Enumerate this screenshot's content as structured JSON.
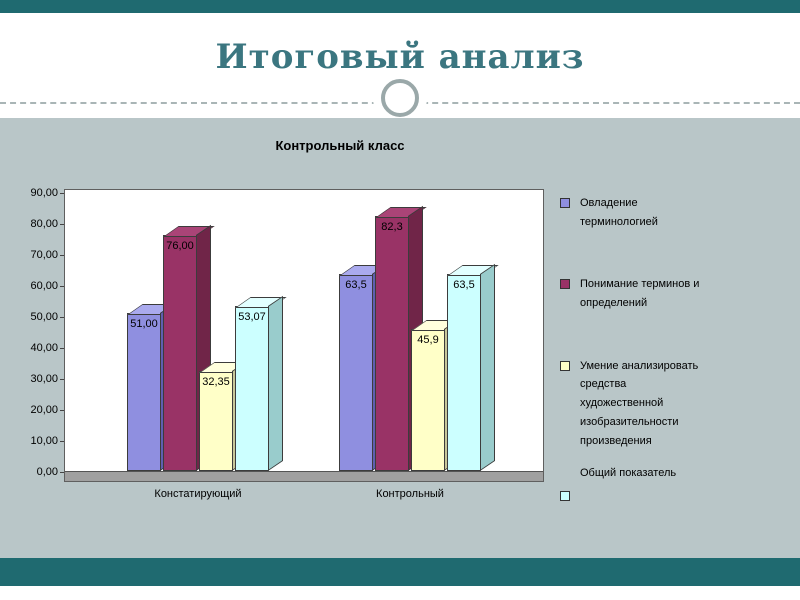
{
  "slide": {
    "title": "Итоговый анализ",
    "colors": {
      "accent_band": "#1f6a70",
      "body_background": "#b9c6c8",
      "title_text": "#3b7680"
    }
  },
  "chart_data": {
    "type": "bar",
    "variant": "3d-clustered",
    "title": "Контрольный класс",
    "categories": [
      "Констатирующий",
      "Контрольный"
    ],
    "series": [
      {
        "name": "Овладение терминологией",
        "values": [
          51.0,
          63.5
        ],
        "labels": [
          "51,00",
          "63,5"
        ],
        "color": "#8f8fe0",
        "color_side": "#5f5fb0",
        "color_top": "#aaaaee"
      },
      {
        "name": "Понимание терминов и определений",
        "values": [
          76.0,
          82.3
        ],
        "labels": [
          "76,00",
          "82,3"
        ],
        "color": "#993366",
        "color_side": "#702548",
        "color_top": "#aa4477"
      },
      {
        "name": "Умение анализировать средства художественной изобразительности произведения",
        "values": [
          32.35,
          45.9
        ],
        "labels": [
          "32,35",
          "45,9"
        ],
        "color": "#ffffc8",
        "color_side": "#c8c89a",
        "color_top": "#ffffdd"
      },
      {
        "name": "Общий показатель",
        "values": [
          53.07,
          63.5
        ],
        "labels": [
          "53,07",
          "63,5"
        ],
        "color": "#ccffff",
        "color_side": "#99cccc",
        "color_top": "#e2ffff",
        "swatch_below_text": true
      }
    ],
    "y_axis": {
      "min": 0,
      "max": 90,
      "tick_step": 10,
      "tick_labels": [
        "90,00",
        "80,00",
        "70,00",
        "60,00",
        "50,00",
        "40,00",
        "30,00",
        "20,00",
        "10,00",
        "0,00"
      ]
    },
    "legend_position": "right",
    "grid": false
  }
}
